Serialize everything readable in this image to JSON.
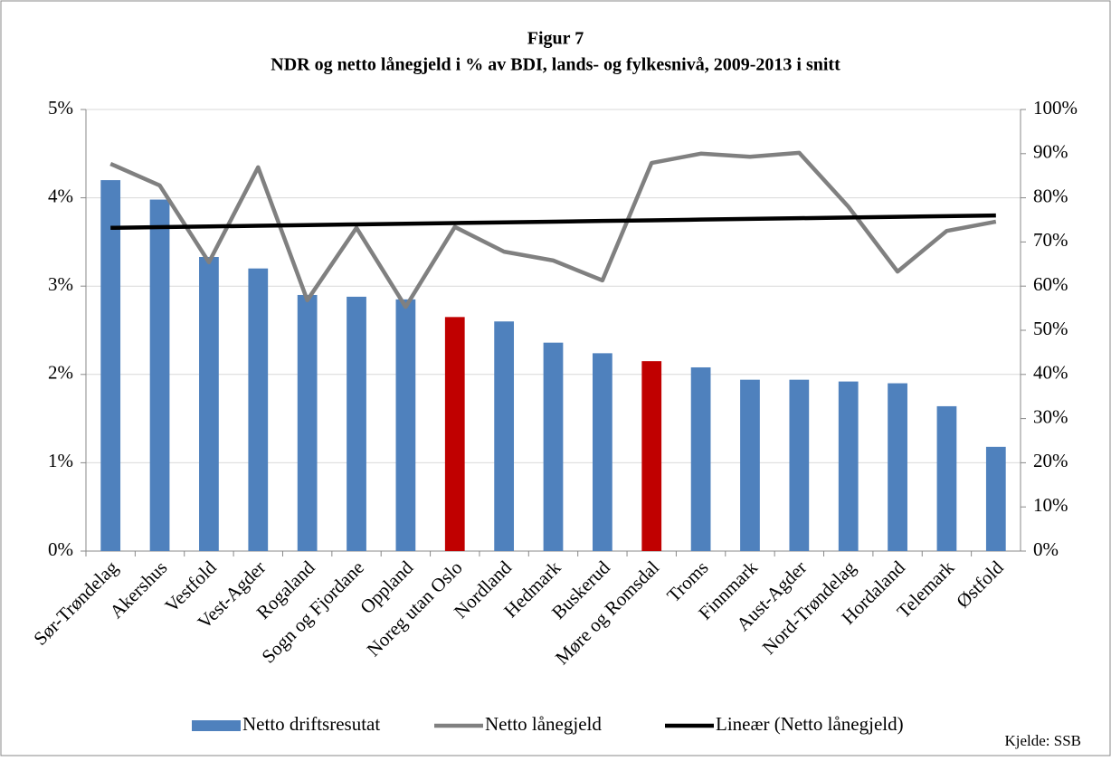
{
  "chart_data": {
    "type": "bar-line",
    "title": "Figur 7",
    "subtitle": "NDR og netto lånegjeld i % av BDI, lands- og fylkesnivå, 2009-2013 i snitt",
    "source": "Kjelde: SSB",
    "categories": [
      "Sør-Trøndelag",
      "Akershus",
      "Vestfold",
      "Vest-Agder",
      "Rogaland",
      "Sogn og Fjordane",
      "Oppland",
      "Noreg utan Oslo",
      "Nordland",
      "Hedmark",
      "Buskerud",
      "Møre og Romsdal",
      "Troms",
      "Finnmark",
      "Aust-Agder",
      "Nord-Trøndelag",
      "Hordaland",
      "Telemark",
      "Østfold"
    ],
    "series": [
      {
        "name": "Netto driftsresutat",
        "kind": "bar",
        "axis": "y",
        "color": "#4f81bd",
        "colors": [
          "#4f81bd",
          "#4f81bd",
          "#4f81bd",
          "#4f81bd",
          "#4f81bd",
          "#4f81bd",
          "#4f81bd",
          "#c00000",
          "#4f81bd",
          "#4f81bd",
          "#4f81bd",
          "#c00000",
          "#4f81bd",
          "#4f81bd",
          "#4f81bd",
          "#4f81bd",
          "#4f81bd",
          "#4f81bd",
          "#4f81bd"
        ],
        "values": [
          4.2,
          3.98,
          3.33,
          3.2,
          2.9,
          2.88,
          2.85,
          2.65,
          2.6,
          2.36,
          2.24,
          2.15,
          2.08,
          1.94,
          1.94,
          1.92,
          1.9,
          1.64,
          1.18
        ]
      },
      {
        "name": "Netto lånegjeld",
        "kind": "line",
        "axis": "y2",
        "color": "#808080",
        "values": [
          87.7,
          82.8,
          65.4,
          86.9,
          56.8,
          73.2,
          55.3,
          73.4,
          67.8,
          65.8,
          61.3,
          87.9,
          90,
          89.3,
          90.2,
          78,
          63.3,
          72.5,
          74.6
        ]
      },
      {
        "name": "Lineær (Netto lånegjeld)",
        "kind": "line",
        "axis": "y2",
        "color": "#000000",
        "values": [
          73.2,
          73.36,
          73.51,
          73.67,
          73.82,
          73.98,
          74.13,
          74.29,
          74.44,
          74.6,
          74.76,
          74.91,
          75.07,
          75.22,
          75.38,
          75.53,
          75.69,
          75.84,
          76.0
        ]
      }
    ],
    "ylim": [
      0,
      5
    ],
    "yticks": [
      {
        "value": 0,
        "label": "0%"
      },
      {
        "value": 1,
        "label": "1%"
      },
      {
        "value": 2,
        "label": "2%"
      },
      {
        "value": 3,
        "label": "3%"
      },
      {
        "value": 4,
        "label": "4%"
      },
      {
        "value": 5,
        "label": "5%"
      }
    ],
    "y2lim": [
      0,
      100
    ],
    "y2ticks": [
      {
        "value": 0,
        "label": "0%"
      },
      {
        "value": 10,
        "label": "10%"
      },
      {
        "value": 20,
        "label": "20%"
      },
      {
        "value": 30,
        "label": "30%"
      },
      {
        "value": 40,
        "label": "40%"
      },
      {
        "value": 50,
        "label": "50%"
      },
      {
        "value": 60,
        "label": "60%"
      },
      {
        "value": 70,
        "label": "70%"
      },
      {
        "value": 80,
        "label": "80%"
      },
      {
        "value": 90,
        "label": "90%"
      },
      {
        "value": 100,
        "label": "100%"
      }
    ],
    "grid": true,
    "legend": "bottom"
  }
}
